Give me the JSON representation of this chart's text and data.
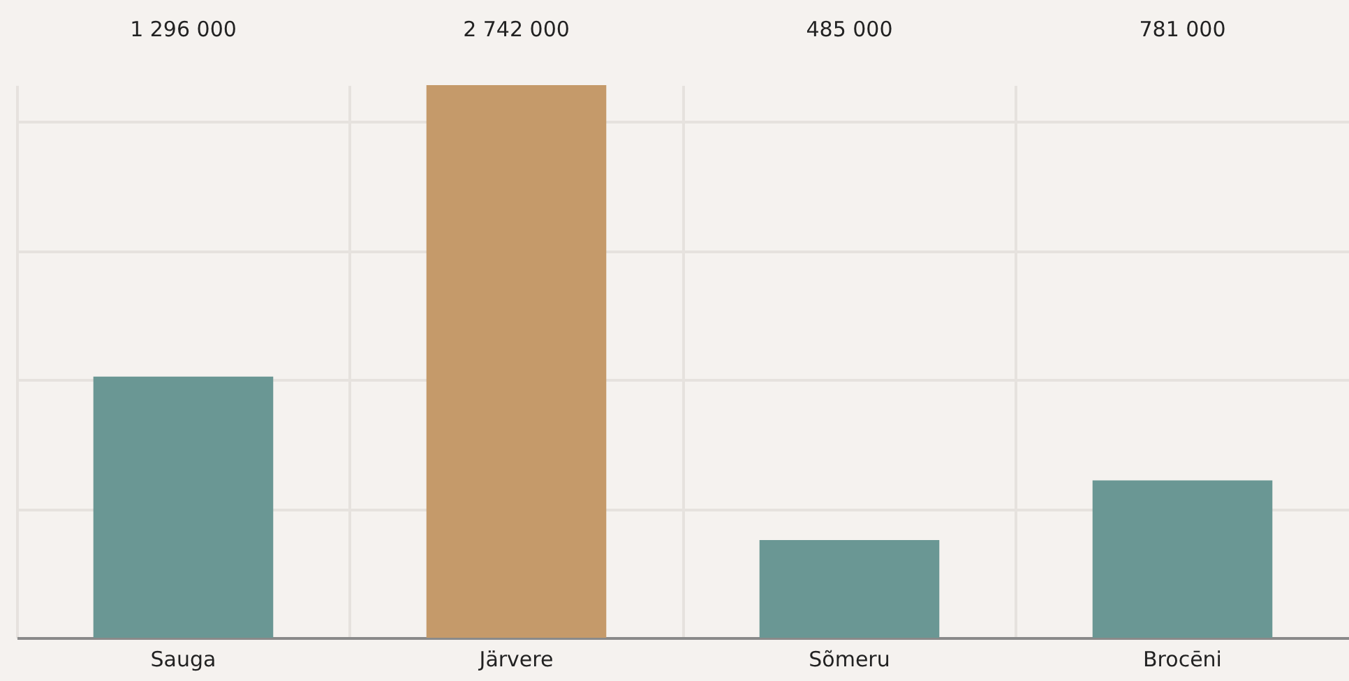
{
  "chart_data": {
    "type": "bar",
    "categories": [
      "Sauga",
      "Järvere",
      "Sõmeru",
      "Brocēni"
    ],
    "values": [
      1296000,
      2742000,
      485000,
      781000
    ],
    "colors": [
      "#6a9794",
      "#c59a6a",
      "#6a9794",
      "#6a9794"
    ],
    "value_labels": [
      "1 296 000",
      "2 742 000",
      "485 000",
      "781 000"
    ],
    "ylim": [
      0,
      2742000
    ],
    "yticks": [
      {
        "value": 640000,
        "label": null
      },
      {
        "value": 1280000,
        "label": null
      },
      {
        "value": 1920000,
        "label": null
      },
      {
        "value": 2560000,
        "label": null
      }
    ],
    "grid": true,
    "tick_labels": "x"
  }
}
